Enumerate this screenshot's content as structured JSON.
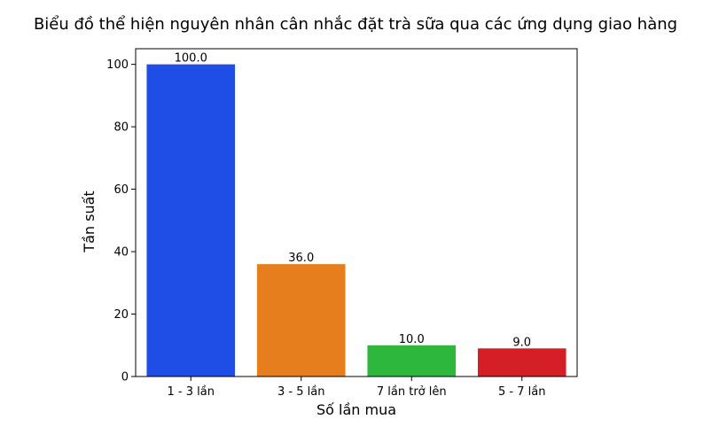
{
  "chart_data": {
    "type": "bar",
    "title": "Biểu đồ thể hiện nguyên nhân cân nhắc đặt trà sữa qua các ứng dụng giao hàng",
    "xlabel": "Số lần mua",
    "ylabel": "Tần suất",
    "categories": [
      "1 - 3 lần",
      "3 - 5 lần",
      "7 lần trở lên",
      "5 - 7 lần"
    ],
    "values": [
      100,
      36,
      10,
      9
    ],
    "data_labels": [
      "100.0",
      "36.0",
      "10.0",
      "9.0"
    ],
    "colors": [
      "#1f4ee6",
      "#e67e1e",
      "#2db83d",
      "#d41f26"
    ],
    "ylim": [
      0,
      105
    ],
    "yticks": [
      0,
      20,
      40,
      60,
      80,
      100
    ],
    "grid": false,
    "legend": "none"
  }
}
